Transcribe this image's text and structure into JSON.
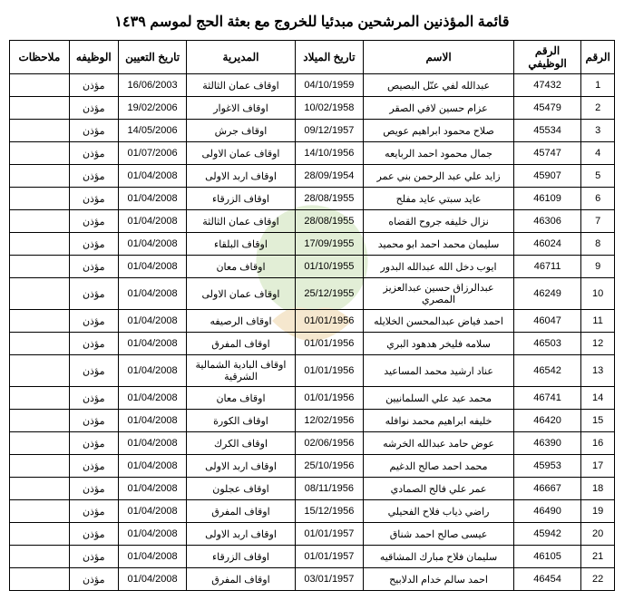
{
  "title": "قائمة المؤذنين المرشحين مبدئيا للخروج مع بعثة الحج لموسم ١٤٣٩",
  "headers": {
    "seq": "الرقم",
    "empno": "الرقم الوظيفي",
    "name": "الاسم",
    "dob": "تاريخ الميلاد",
    "directorate": "المديرية",
    "hire": "تاريخ التعيين",
    "job": "الوظيفه",
    "notes": "ملاحظات"
  },
  "job_label": "مؤذن",
  "rows": [
    {
      "seq": "1",
      "emp": "47432",
      "name": "عبدالله لفي عنّل البصيص",
      "dob": "04/10/1959",
      "dir": "اوقاف عمان الثالثة",
      "hire": "16/06/2003"
    },
    {
      "seq": "2",
      "emp": "45479",
      "name": "عزام حسين لافي الصقر",
      "dob": "10/02/1958",
      "dir": "اوقاف الاغوار",
      "hire": "19/02/2006"
    },
    {
      "seq": "3",
      "emp": "45534",
      "name": "صلاح محمود ابراهيم عويص",
      "dob": "09/12/1957",
      "dir": "اوقاف جرش",
      "hire": "14/05/2006"
    },
    {
      "seq": "4",
      "emp": "45747",
      "name": "جمال محمود احمد الربايعه",
      "dob": "14/10/1956",
      "dir": "اوقاف عمان الاولى",
      "hire": "01/07/2006"
    },
    {
      "seq": "5",
      "emp": "45907",
      "name": "زايد علي عبد الرحمن بني عمر",
      "dob": "28/09/1954",
      "dir": "اوقاف اربد الاولى",
      "hire": "01/04/2008"
    },
    {
      "seq": "6",
      "emp": "46109",
      "name": "عايد سبتي عايد مفلح",
      "dob": "28/08/1955",
      "dir": "اوقاف الزرقاء",
      "hire": "01/04/2008"
    },
    {
      "seq": "7",
      "emp": "46306",
      "name": "نزال خليفه جروح القضاه",
      "dob": "28/08/1955",
      "dir": "اوقاف عمان الثالثة",
      "hire": "01/04/2008"
    },
    {
      "seq": "8",
      "emp": "46024",
      "name": "سليمان محمد احمد ابو محميد",
      "dob": "17/09/1955",
      "dir": "اوقاف البلقاء",
      "hire": "01/04/2008"
    },
    {
      "seq": "9",
      "emp": "46711",
      "name": "ايوب دخل الله عبدالله البدور",
      "dob": "01/10/1955",
      "dir": "اوقاف معان",
      "hire": "01/04/2008"
    },
    {
      "seq": "10",
      "emp": "46249",
      "name": "عبدالرزاق حسين عبدالعزيز المصري",
      "dob": "25/12/1955",
      "dir": "اوقاف عمان الاولى",
      "hire": "01/04/2008"
    },
    {
      "seq": "11",
      "emp": "46047",
      "name": "احمد فياض عبدالمحسن الخلايله",
      "dob": "01/01/1956",
      "dir": "اوقاف الرصيفه",
      "hire": "01/04/2008"
    },
    {
      "seq": "12",
      "emp": "46503",
      "name": "سلامه فليخر هدهود البري",
      "dob": "01/01/1956",
      "dir": "اوقاف المفرق",
      "hire": "01/04/2008"
    },
    {
      "seq": "13",
      "emp": "46542",
      "name": "عناد ارشيد محمد المساعيد",
      "dob": "01/01/1956",
      "dir": "اوقاف البادية الشمالية الشرقية",
      "hire": "01/04/2008"
    },
    {
      "seq": "14",
      "emp": "46741",
      "name": "محمد عيد علي السلمانيين",
      "dob": "01/01/1956",
      "dir": "اوقاف معان",
      "hire": "01/04/2008"
    },
    {
      "seq": "15",
      "emp": "46420",
      "name": "خليفه ابراهيم محمد نوافله",
      "dob": "12/02/1956",
      "dir": "اوقاف الكورة",
      "hire": "01/04/2008"
    },
    {
      "seq": "16",
      "emp": "46390",
      "name": "عوض حامد عبدالله الخرشه",
      "dob": "02/06/1956",
      "dir": "اوقاف الكرك",
      "hire": "01/04/2008"
    },
    {
      "seq": "17",
      "emp": "45953",
      "name": "محمد احمد صالح الدغيم",
      "dob": "25/10/1956",
      "dir": "اوقاف اربد الاولى",
      "hire": "01/04/2008"
    },
    {
      "seq": "18",
      "emp": "46667",
      "name": "عمر علي فالح الصمادي",
      "dob": "08/11/1956",
      "dir": "اوقاف عجلون",
      "hire": "01/04/2008"
    },
    {
      "seq": "19",
      "emp": "46490",
      "name": "راضي ذياب فلاح الفحيلي",
      "dob": "15/12/1956",
      "dir": "اوقاف المفرق",
      "hire": "01/04/2008"
    },
    {
      "seq": "20",
      "emp": "45942",
      "name": "عيسى صالح احمد شناق",
      "dob": "01/01/1957",
      "dir": "اوقاف اربد الاولى",
      "hire": "01/04/2008"
    },
    {
      "seq": "21",
      "emp": "46105",
      "name": "سليمان فلاح مبارك المشاقيه",
      "dob": "01/01/1957",
      "dir": "اوقاف الزرقاء",
      "hire": "01/04/2008"
    },
    {
      "seq": "22",
      "emp": "46454",
      "name": "احمد سالم خدام الدلابيح",
      "dob": "03/01/1957",
      "dir": "اوقاف المفرق",
      "hire": "01/04/2008"
    }
  ],
  "style": {
    "border_color": "#000000",
    "font_size_body": 11,
    "font_size_header": 12,
    "font_size_title": 16
  }
}
